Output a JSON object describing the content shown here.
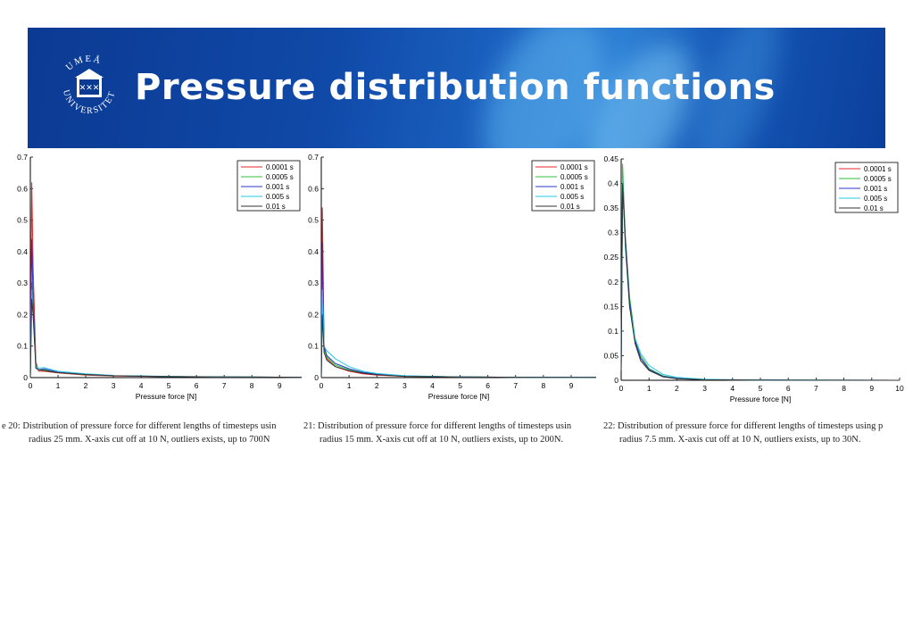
{
  "slide": {
    "title": "Pressure distribution functions",
    "logo": {
      "icon": "umea-university-seal-icon",
      "text": "UMEÅ UNIVERSITET"
    },
    "colors": {
      "banner": "#0b3a93",
      "banner_highlight": "#2c7fd4",
      "title": "#ffffff"
    }
  },
  "chart_data": [
    {
      "type": "line",
      "xlabel": "Pressure force [N]",
      "ylabel": "",
      "xlim": [
        0,
        9.8
      ],
      "ylim": [
        0,
        0.7
      ],
      "xticks": [
        0,
        1,
        2,
        3,
        4,
        5,
        6,
        7,
        8,
        9
      ],
      "yticks": [
        "0",
        "0.1",
        "0.2",
        "0.3",
        "0.4",
        "0.5",
        "0.6",
        "0.7"
      ],
      "legend_position": "top-right",
      "series": [
        {
          "name": "0.0001 s",
          "color": "#e8262b",
          "x": [
            0,
            0.05,
            0.1,
            0.2,
            0.3,
            0.5,
            1,
            2,
            3,
            5,
            7,
            9.8
          ],
          "y": [
            0,
            0.62,
            0.35,
            0.05,
            0.02,
            0.02,
            0.015,
            0.008,
            0.005,
            0.003,
            0.002,
            0.001
          ]
        },
        {
          "name": "0.0005 s",
          "color": "#2fc23a",
          "x": [
            0,
            0.05,
            0.1,
            0.2,
            0.3,
            0.5,
            1,
            2,
            3,
            5,
            7,
            9.8
          ],
          "y": [
            0,
            0.3,
            0.25,
            0.04,
            0.025,
            0.025,
            0.016,
            0.009,
            0.006,
            0.003,
            0.002,
            0.001
          ]
        },
        {
          "name": "0.001 s",
          "color": "#2b35c8",
          "x": [
            0,
            0.05,
            0.1,
            0.2,
            0.3,
            0.5,
            1,
            2,
            3,
            5,
            7,
            9.8
          ],
          "y": [
            0,
            0.44,
            0.25,
            0.03,
            0.025,
            0.028,
            0.017,
            0.01,
            0.006,
            0.003,
            0.002,
            0.001
          ]
        },
        {
          "name": "0.005 s",
          "color": "#27c9e6",
          "x": [
            0,
            0.05,
            0.1,
            0.2,
            0.3,
            0.5,
            1,
            2,
            3,
            5,
            7,
            9.8
          ],
          "y": [
            0,
            0.28,
            0.2,
            0.035,
            0.03,
            0.032,
            0.02,
            0.012,
            0.007,
            0.004,
            0.002,
            0.001
          ]
        },
        {
          "name": "0.01 s",
          "color": "#333333",
          "x": [
            0,
            0.05,
            0.1,
            0.2,
            0.3,
            0.5,
            1,
            2,
            3,
            5,
            7,
            9.8
          ],
          "y": [
            0,
            0.25,
            0.2,
            0.03,
            0.025,
            0.022,
            0.016,
            0.01,
            0.006,
            0.003,
            0.002,
            0.001
          ]
        }
      ],
      "caption": [
        "e 20: Distribution of pressure force for different lengths of timesteps usin",
        "radius 25 mm. X-axis cut off at 10 N, outliers exists, up to 700N"
      ]
    },
    {
      "type": "line",
      "xlabel": "Pressure force [N]",
      "ylabel": "",
      "xlim": [
        0,
        9.9
      ],
      "ylim": [
        0,
        0.7
      ],
      "xticks": [
        0,
        1,
        2,
        3,
        4,
        5,
        6,
        7,
        8,
        9
      ],
      "yticks": [
        "0",
        "0.1",
        "0.2",
        "0.3",
        "0.4",
        "0.5",
        "0.6",
        "0.7"
      ],
      "legend_position": "top-right",
      "series": [
        {
          "name": "0.0001 s",
          "color": "#e8262b",
          "x": [
            0,
            0.04,
            0.1,
            0.2,
            0.5,
            1,
            1.5,
            2,
            3,
            5,
            7,
            9.9
          ],
          "y": [
            0,
            0.54,
            0.1,
            0.06,
            0.035,
            0.02,
            0.012,
            0.008,
            0.004,
            0.002,
            0.001,
            0.0005
          ]
        },
        {
          "name": "0.0005 s",
          "color": "#2fc23a",
          "x": [
            0,
            0.04,
            0.1,
            0.2,
            0.5,
            1,
            1.5,
            2,
            3,
            5,
            7,
            9.9
          ],
          "y": [
            0,
            0.33,
            0.09,
            0.065,
            0.04,
            0.025,
            0.015,
            0.01,
            0.005,
            0.002,
            0.001,
            0.0005
          ]
        },
        {
          "name": "0.001 s",
          "color": "#2b35c8",
          "x": [
            0,
            0.04,
            0.1,
            0.2,
            0.5,
            1,
            1.5,
            2,
            3,
            5,
            7,
            9.9
          ],
          "y": [
            0,
            0.43,
            0.1,
            0.07,
            0.045,
            0.028,
            0.017,
            0.011,
            0.005,
            0.002,
            0.001,
            0.0005
          ]
        },
        {
          "name": "0.005 s",
          "color": "#27c9e6",
          "x": [
            0,
            0.04,
            0.1,
            0.2,
            0.5,
            1,
            1.5,
            2,
            3,
            5,
            7,
            9.9
          ],
          "y": [
            0,
            0.28,
            0.1,
            0.085,
            0.06,
            0.035,
            0.02,
            0.013,
            0.006,
            0.002,
            0.001,
            0.0005
          ]
        },
        {
          "name": "0.01 s",
          "color": "#333333",
          "x": [
            0,
            0.04,
            0.1,
            0.2,
            0.5,
            1,
            1.5,
            2,
            3,
            5,
            7,
            9.9
          ],
          "y": [
            0,
            0.2,
            0.08,
            0.055,
            0.035,
            0.022,
            0.014,
            0.009,
            0.004,
            0.002,
            0.001,
            0.0005
          ]
        }
      ],
      "caption": [
        "21: Distribution of pressure force for different lengths of timesteps usin",
        "radius 15 mm. X-axis cut off at 10 N, outliers exists, up to 200N."
      ]
    },
    {
      "type": "line",
      "xlabel": "Pressure force [N]",
      "ylabel": "",
      "xlim": [
        0,
        10
      ],
      "ylim": [
        0,
        0.45
      ],
      "xticks": [
        0,
        1,
        2,
        3,
        4,
        5,
        6,
        7,
        8,
        9,
        10
      ],
      "yticks": [
        "0",
        "0.05",
        "0.1",
        "0.15",
        "0.2",
        "0.25",
        "0.3",
        "0.35",
        "0.4",
        "0.45"
      ],
      "legend_position": "top-right",
      "series": [
        {
          "name": "0.0001 s",
          "color": "#e8262b",
          "x": [
            0,
            0.05,
            0.15,
            0.3,
            0.5,
            0.7,
            1,
            1.5,
            2,
            3,
            5,
            10
          ],
          "y": [
            0.02,
            0.4,
            0.28,
            0.16,
            0.08,
            0.045,
            0.022,
            0.008,
            0.004,
            0.001,
            0.0003,
            0
          ]
        },
        {
          "name": "0.0005 s",
          "color": "#2fc23a",
          "x": [
            0,
            0.05,
            0.15,
            0.3,
            0.5,
            0.7,
            1,
            1.5,
            2,
            3,
            5,
            10
          ],
          "y": [
            0.02,
            0.44,
            0.29,
            0.17,
            0.085,
            0.05,
            0.024,
            0.009,
            0.004,
            0.001,
            0.0003,
            0
          ]
        },
        {
          "name": "0.001 s",
          "color": "#2b35c8",
          "x": [
            0,
            0.05,
            0.15,
            0.3,
            0.5,
            0.7,
            1,
            1.5,
            2,
            3,
            5,
            10
          ],
          "y": [
            0.02,
            0.4,
            0.29,
            0.16,
            0.08,
            0.045,
            0.022,
            0.008,
            0.004,
            0.001,
            0.0003,
            0
          ]
        },
        {
          "name": "0.005 s",
          "color": "#27c9e6",
          "x": [
            0,
            0.05,
            0.15,
            0.3,
            0.5,
            0.7,
            1,
            1.5,
            2,
            3,
            5,
            10
          ],
          "y": [
            0.02,
            0.41,
            0.27,
            0.15,
            0.085,
            0.055,
            0.03,
            0.012,
            0.006,
            0.002,
            0.0005,
            0
          ]
        },
        {
          "name": "0.01 s",
          "color": "#333333",
          "x": [
            0,
            0.05,
            0.15,
            0.3,
            0.5,
            0.7,
            1,
            1.5,
            2,
            3,
            5,
            10
          ],
          "y": [
            0.02,
            0.4,
            0.28,
            0.15,
            0.075,
            0.04,
            0.02,
            0.007,
            0.003,
            0.001,
            0.0003,
            0
          ]
        }
      ],
      "caption": [
        "22: Distribution of pressure force for different lengths of timesteps using p",
        "radius 7.5 mm. X-axis cut off at 10 N, outliers exists, up to 30N."
      ]
    }
  ]
}
